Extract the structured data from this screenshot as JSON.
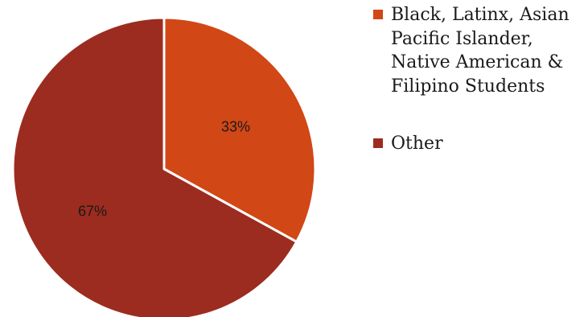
{
  "chart_data": {
    "type": "pie",
    "title": "",
    "slices": [
      {
        "label": "Black, Latinx, Asian Pacific Islander, Native American & Filipino Students",
        "value": 33,
        "display": "33%",
        "color": "#D14716"
      },
      {
        "label": "Other",
        "value": 67,
        "display": "67%",
        "color": "#9C2C1F"
      }
    ],
    "start_angle_deg": 0,
    "direction": "clockwise",
    "legend_placement": "right"
  }
}
